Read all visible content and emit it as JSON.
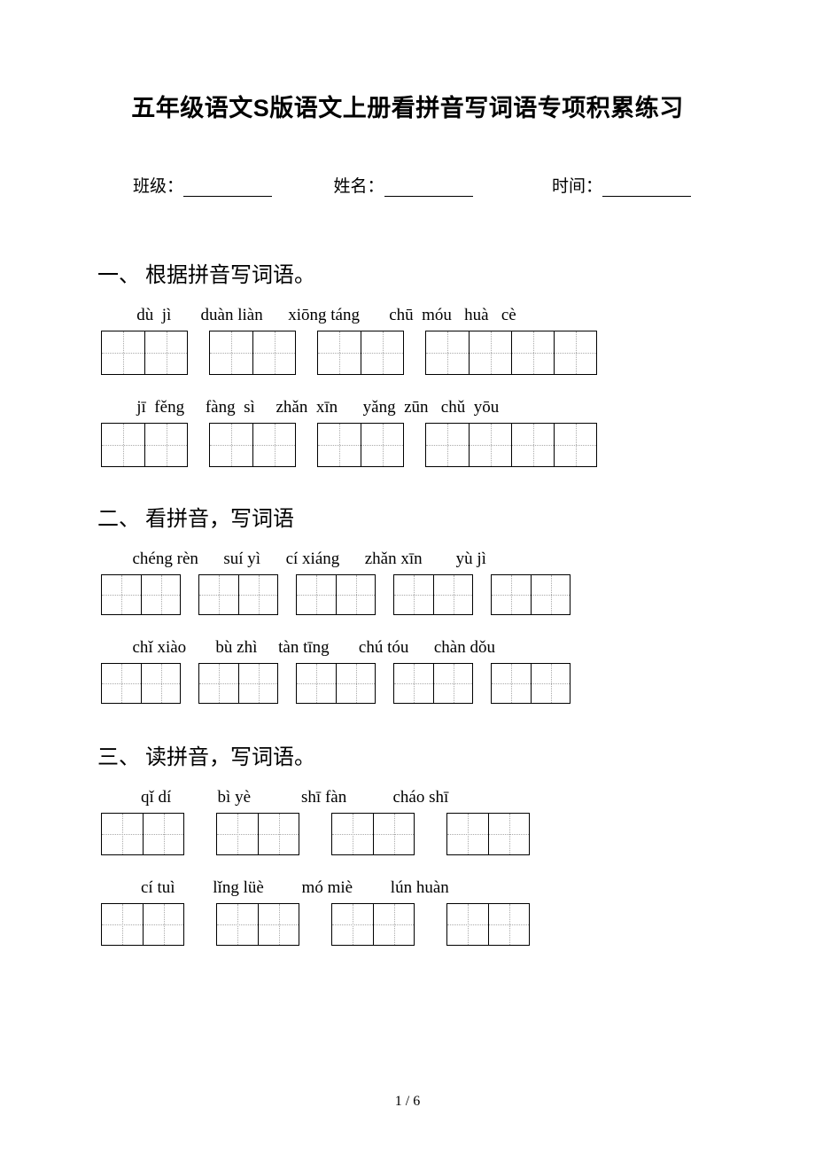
{
  "title": "五年级语文S版语文上册看拼音写词语专项积累练习",
  "info": {
    "class_label": "班级：",
    "name_label": "姓名：",
    "time_label": "时间："
  },
  "sections": [
    {
      "heading": "一、 根据拼音写词语。",
      "rows": [
        {
          "pinyin": "   dù  jì       duàn liàn      xiōng táng       chū  móu   huà   cè",
          "groups": [
            2,
            2,
            2,
            4
          ]
        },
        {
          "pinyin": "   jī  fěng     fàng  sì     zhǎn  xīn      yǎng  zūn   chǔ  yōu",
          "groups": [
            2,
            2,
            2,
            4
          ]
        }
      ]
    },
    {
      "heading": "二、 看拼音，写词语",
      "rows": [
        {
          "pinyin": "  chéng rèn      suí yì      cí xiáng      zhǎn xīn        yù jì",
          "groups": [
            2,
            2,
            2,
            2,
            2
          ]
        },
        {
          "pinyin": "  chǐ xiào       bù zhì     tàn tīng       chú tóu      chàn dǒu",
          "groups": [
            2,
            2,
            2,
            2,
            2
          ]
        }
      ]
    },
    {
      "heading": "三、 读拼音，写词语。",
      "rows": [
        {
          "pinyin": "    qǐ dí           bì yè            shī fàn           cháo shī",
          "groups": [
            2,
            2,
            2,
            2
          ]
        },
        {
          "pinyin": "    cí tuì         lǐng lüè         mó miè         lún huàn",
          "groups": [
            2,
            2,
            2,
            2
          ]
        }
      ]
    }
  ],
  "pagenum": "1 / 6",
  "colors": {
    "text": "#000000",
    "background": "#ffffff",
    "guide": "#aaaaaa"
  }
}
